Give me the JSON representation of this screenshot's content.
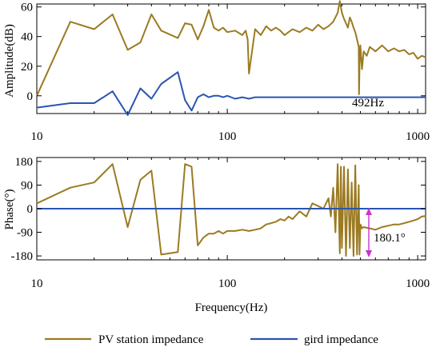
{
  "colors": {
    "pv": "#9B7A22",
    "grid": "#2A55B0",
    "arrow": "#CC33CC",
    "axis": "#000000"
  },
  "chart_data": [
    {
      "type": "line",
      "panel": "amplitude",
      "ylabel": "Amplitude(dB)",
      "xlabel": "",
      "xscale": "log",
      "xlim": [
        10,
        1100
      ],
      "ylim": [
        -12,
        62
      ],
      "xticks": [
        10,
        100,
        1000
      ],
      "xtick_labels": [
        "10",
        "100",
        "1000"
      ],
      "yticks": [
        0,
        20,
        40,
        60
      ],
      "ytick_labels": [
        "0",
        "20",
        "40",
        "60"
      ],
      "grid": false,
      "series": [
        {
          "name": "PV station impedance",
          "color_key": "pv",
          "x": [
            10,
            15,
            20,
            25,
            30,
            35,
            40,
            45,
            55,
            60,
            65,
            70,
            75,
            80,
            85,
            90,
            95,
            100,
            110,
            120,
            125,
            128,
            130,
            140,
            150,
            160,
            170,
            180,
            190,
            200,
            220,
            240,
            260,
            280,
            300,
            320,
            340,
            360,
            380,
            390,
            400,
            410,
            420,
            430,
            440,
            450,
            460,
            470,
            480,
            490,
            492,
            495,
            500,
            510,
            520,
            540,
            560,
            600,
            650,
            700,
            750,
            800,
            850,
            900,
            950,
            1000,
            1050,
            1100
          ],
          "y": [
            0,
            50,
            45,
            55,
            31,
            36,
            55,
            44,
            39,
            49,
            48,
            38,
            47,
            58,
            46,
            44,
            46,
            43,
            44,
            41,
            44,
            38,
            15,
            45,
            41,
            47,
            44,
            46,
            44,
            41,
            45,
            43,
            46,
            44,
            48,
            45,
            47,
            50,
            56,
            64,
            56,
            52,
            49,
            46,
            53,
            50,
            46,
            43,
            38,
            33,
            1,
            20,
            34,
            18,
            30,
            27,
            33,
            30,
            34,
            30,
            32,
            30,
            31,
            28,
            29,
            25,
            27,
            26
          ]
        },
        {
          "name": "gird impedance",
          "color_key": "grid",
          "x": [
            10,
            15,
            20,
            25,
            30,
            35,
            40,
            45,
            55,
            60,
            65,
            70,
            75,
            80,
            85,
            90,
            95,
            100,
            110,
            120,
            130,
            140,
            150,
            200,
            300,
            400,
            500,
            600,
            800,
            1000,
            1100
          ],
          "y": [
            -8,
            -5,
            -5,
            3,
            -13,
            5,
            -2,
            8,
            16,
            -3,
            -10,
            -1,
            1,
            -1,
            0,
            0,
            -1,
            0,
            -2,
            -1,
            -2,
            -1,
            -1,
            -1,
            -1,
            -1,
            -1,
            -1,
            -1,
            -1,
            -1
          ]
        }
      ],
      "annotations": [
        "492Hz"
      ]
    },
    {
      "type": "line",
      "panel": "phase",
      "xlabel": "Frequency(Hz)",
      "ylabel": "Phase(°)",
      "xscale": "log",
      "xlim": [
        10,
        1100
      ],
      "ylim": [
        -195,
        195
      ],
      "xticks": [
        10,
        100,
        1000
      ],
      "xtick_labels": [
        "10",
        "100",
        "1000"
      ],
      "yticks": [
        180,
        90,
        0,
        -90,
        -180
      ],
      "ytick_labels": [
        "180",
        "90",
        "0",
        "-90",
        "-180"
      ],
      "grid": false,
      "series": [
        {
          "name": "PV station impedance",
          "color_key": "pv",
          "x": [
            10,
            15,
            20,
            25,
            30,
            35,
            40,
            45,
            55,
            60,
            65,
            70,
            75,
            80,
            85,
            90,
            95,
            100,
            110,
            120,
            130,
            140,
            150,
            160,
            170,
            180,
            190,
            200,
            210,
            220,
            240,
            260,
            280,
            300,
            320,
            340,
            350,
            360,
            370,
            380,
            390,
            395,
            400,
            410,
            420,
            430,
            440,
            450,
            460,
            470,
            480,
            490,
            495,
            500,
            510,
            520,
            560,
            600,
            650,
            700,
            750,
            800,
            850,
            900,
            950,
            1000,
            1050,
            1100
          ],
          "y": [
            20,
            80,
            100,
            170,
            -70,
            110,
            145,
            -175,
            -165,
            170,
            160,
            -140,
            -110,
            -95,
            -95,
            -85,
            -95,
            -85,
            -85,
            -80,
            -85,
            -80,
            -75,
            -60,
            -55,
            -50,
            -40,
            -45,
            -30,
            -40,
            -10,
            -30,
            20,
            10,
            0,
            40,
            -30,
            80,
            -90,
            170,
            -170,
            160,
            -150,
            160,
            -180,
            150,
            -150,
            100,
            -180,
            165,
            -175,
            90,
            -175,
            -60,
            -75,
            -70,
            -75,
            -80,
            -70,
            -65,
            -60,
            -60,
            -55,
            -50,
            -45,
            -40,
            -30,
            -28
          ]
        },
        {
          "name": "gird impedance",
          "color_key": "grid",
          "x": [
            10,
            1100
          ],
          "y": [
            0,
            0
          ]
        }
      ],
      "annotations": [
        "180.1°"
      ]
    }
  ],
  "legend": {
    "placement": "bottom",
    "items": [
      {
        "label": "PV station impedance",
        "color_key": "pv"
      },
      {
        "label": "gird impedance",
        "color_key": "grid"
      }
    ]
  }
}
